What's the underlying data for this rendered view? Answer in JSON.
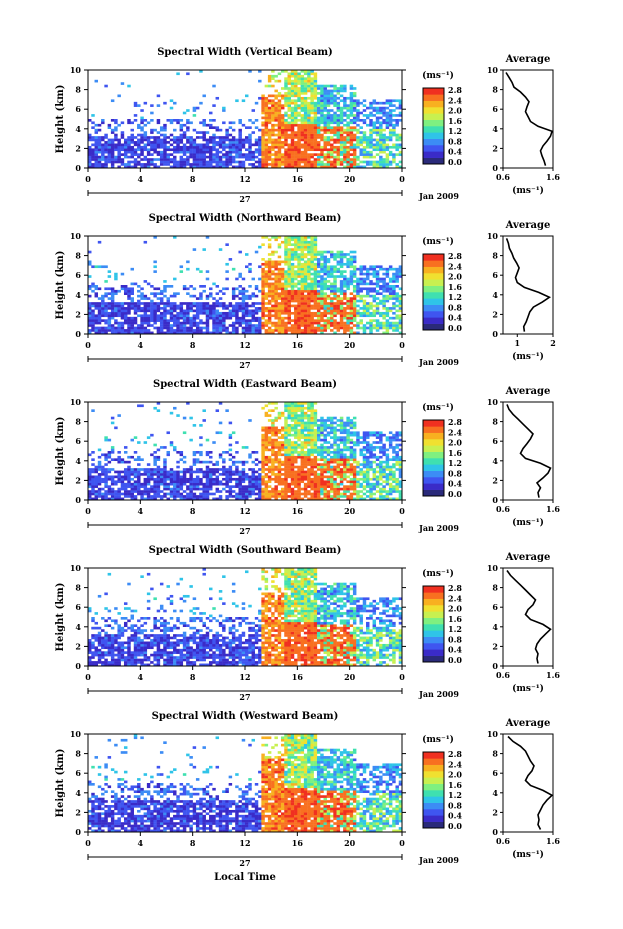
{
  "figure": {
    "xlabel_bottom": "Local Time",
    "ylabel": "Height (km)",
    "date_label": "Jan 2009",
    "day_label": "27",
    "colorbar_unit": "(ms⁻¹)",
    "avg_title": "Average",
    "avg_xlabel": "(ms⁻¹)"
  },
  "colorbar": {
    "tick_labels": [
      "0.0",
      "0.4",
      "0.8",
      "1.2",
      "1.6",
      "2.0",
      "2.4",
      "2.8"
    ],
    "colors": [
      "#2a2a7a",
      "#3a2bc8",
      "#3f55f0",
      "#3c8cf5",
      "#2fc4e8",
      "#3fe0b0",
      "#7ff080",
      "#c8f050",
      "#f0e030",
      "#f8b020",
      "#f87020",
      "#f03020"
    ]
  },
  "chart_data": [
    {
      "type": "heatmap",
      "title": "Spectral Width (Vertical Beam)",
      "xlim": [
        0,
        24
      ],
      "ylim": [
        0,
        10
      ],
      "x_ticks": [
        "0",
        "4",
        "8",
        "12",
        "16",
        "20",
        "0"
      ],
      "y_ticks": [
        "0",
        "2",
        "4",
        "6",
        "8",
        "10"
      ],
      "avg_profile": {
        "xlim": [
          0.6,
          1.6
        ],
        "x_ticks": [
          "0.6",
          "1.6"
        ],
        "y_ticks": [
          "0",
          "2",
          "4",
          "6",
          "8",
          "10"
        ],
        "values": [
          1.45,
          1.42,
          1.38,
          1.35,
          1.4,
          1.48,
          1.55,
          1.58,
          1.3,
          1.15,
          1.1,
          1.05,
          1.08,
          1.12,
          1.05,
          0.95,
          0.82,
          0.78,
          0.72,
          0.66
        ],
        "heights": [
          0.25,
          0.75,
          1.25,
          1.75,
          2.25,
          2.75,
          3.25,
          3.75,
          4.25,
          4.75,
          5.25,
          5.75,
          6.25,
          6.75,
          7.25,
          7.75,
          8.25,
          8.75,
          9.25,
          9.75
        ]
      }
    },
    {
      "type": "heatmap",
      "title": "Spectral Width (Northward Beam)",
      "xlim": [
        0,
        24
      ],
      "ylim": [
        0,
        10
      ],
      "x_ticks": [
        "0",
        "4",
        "8",
        "12",
        "16",
        "20",
        "0"
      ],
      "y_ticks": [
        "0",
        "2",
        "4",
        "6",
        "8",
        "10"
      ],
      "avg_profile": {
        "xlim": [
          0.6,
          2.0
        ],
        "x_ticks": [
          "1",
          "2"
        ],
        "y_ticks": [
          "0",
          "2",
          "4",
          "6",
          "8",
          "10"
        ],
        "values": [
          1.2,
          1.18,
          1.25,
          1.3,
          1.35,
          1.45,
          1.7,
          1.9,
          1.6,
          1.2,
          1.0,
          0.95,
          1.0,
          1.05,
          0.98,
          0.9,
          0.85,
          0.78,
          0.75,
          0.7
        ],
        "heights": [
          0.25,
          0.75,
          1.25,
          1.75,
          2.25,
          2.75,
          3.25,
          3.75,
          4.25,
          4.75,
          5.25,
          5.75,
          6.25,
          6.75,
          7.25,
          7.75,
          8.25,
          8.75,
          9.25,
          9.75
        ]
      }
    },
    {
      "type": "heatmap",
      "title": "Spectral Width (Eastward Beam)",
      "xlim": [
        0,
        24
      ],
      "ylim": [
        0,
        10
      ],
      "x_ticks": [
        "0",
        "4",
        "8",
        "12",
        "16",
        "20",
        "0"
      ],
      "y_ticks": [
        "0",
        "2",
        "4",
        "6",
        "8",
        "10"
      ],
      "avg_profile": {
        "xlim": [
          0.6,
          1.6
        ],
        "x_ticks": [
          "0.6",
          "1.6"
        ],
        "y_ticks": [
          "0",
          "2",
          "4",
          "6",
          "8",
          "10"
        ],
        "values": [
          1.32,
          1.3,
          1.35,
          1.28,
          1.4,
          1.5,
          1.55,
          1.35,
          1.05,
          0.95,
          1.0,
          1.08,
          1.15,
          1.2,
          1.1,
          1.0,
          0.9,
          0.8,
          0.72,
          0.68
        ],
        "heights": [
          0.25,
          0.75,
          1.25,
          1.75,
          2.25,
          2.75,
          3.25,
          3.75,
          4.25,
          4.75,
          5.25,
          5.75,
          6.25,
          6.75,
          7.25,
          7.75,
          8.25,
          8.75,
          9.25,
          9.75
        ]
      }
    },
    {
      "type": "heatmap",
      "title": "Spectral Width (Southward Beam)",
      "xlim": [
        0,
        24
      ],
      "ylim": [
        0,
        10
      ],
      "x_ticks": [
        "0",
        "4",
        "8",
        "12",
        "16",
        "20",
        "0"
      ],
      "y_ticks": [
        "0",
        "2",
        "4",
        "6",
        "8",
        "10"
      ],
      "avg_profile": {
        "xlim": [
          0.6,
          1.6
        ],
        "x_ticks": [
          "0.6",
          "1.6"
        ],
        "y_ticks": [
          "0",
          "2",
          "4",
          "6",
          "8",
          "10"
        ],
        "values": [
          1.3,
          1.28,
          1.3,
          1.25,
          1.28,
          1.35,
          1.45,
          1.55,
          1.4,
          1.15,
          1.05,
          1.1,
          1.2,
          1.25,
          1.15,
          1.05,
          0.95,
          0.85,
          0.75,
          0.68
        ],
        "heights": [
          0.25,
          0.75,
          1.25,
          1.75,
          2.25,
          2.75,
          3.25,
          3.75,
          4.25,
          4.75,
          5.25,
          5.75,
          6.25,
          6.75,
          7.25,
          7.75,
          8.25,
          8.75,
          9.25,
          9.75
        ]
      }
    },
    {
      "type": "heatmap",
      "title": "Spectral Width (Westward Beam)",
      "xlim": [
        0,
        24
      ],
      "ylim": [
        0,
        10
      ],
      "x_ticks": [
        "0",
        "4",
        "8",
        "12",
        "16",
        "20",
        "0"
      ],
      "y_ticks": [
        "0",
        "2",
        "4",
        "6",
        "8",
        "10"
      ],
      "avg_profile": {
        "xlim": [
          0.6,
          1.6
        ],
        "x_ticks": [
          "0.6",
          "1.6"
        ],
        "y_ticks": [
          "0",
          "2",
          "4",
          "6",
          "8",
          "10"
        ],
        "values": [
          1.35,
          1.3,
          1.32,
          1.3,
          1.35,
          1.4,
          1.48,
          1.58,
          1.4,
          1.15,
          1.05,
          1.1,
          1.18,
          1.22,
          1.15,
          1.1,
          1.05,
          0.95,
          0.8,
          0.7
        ],
        "heights": [
          0.25,
          0.75,
          1.25,
          1.75,
          2.25,
          2.75,
          3.25,
          3.75,
          4.25,
          4.75,
          5.25,
          5.75,
          6.25,
          6.75,
          7.25,
          7.75,
          8.25,
          8.75,
          9.25,
          9.75
        ]
      }
    }
  ]
}
